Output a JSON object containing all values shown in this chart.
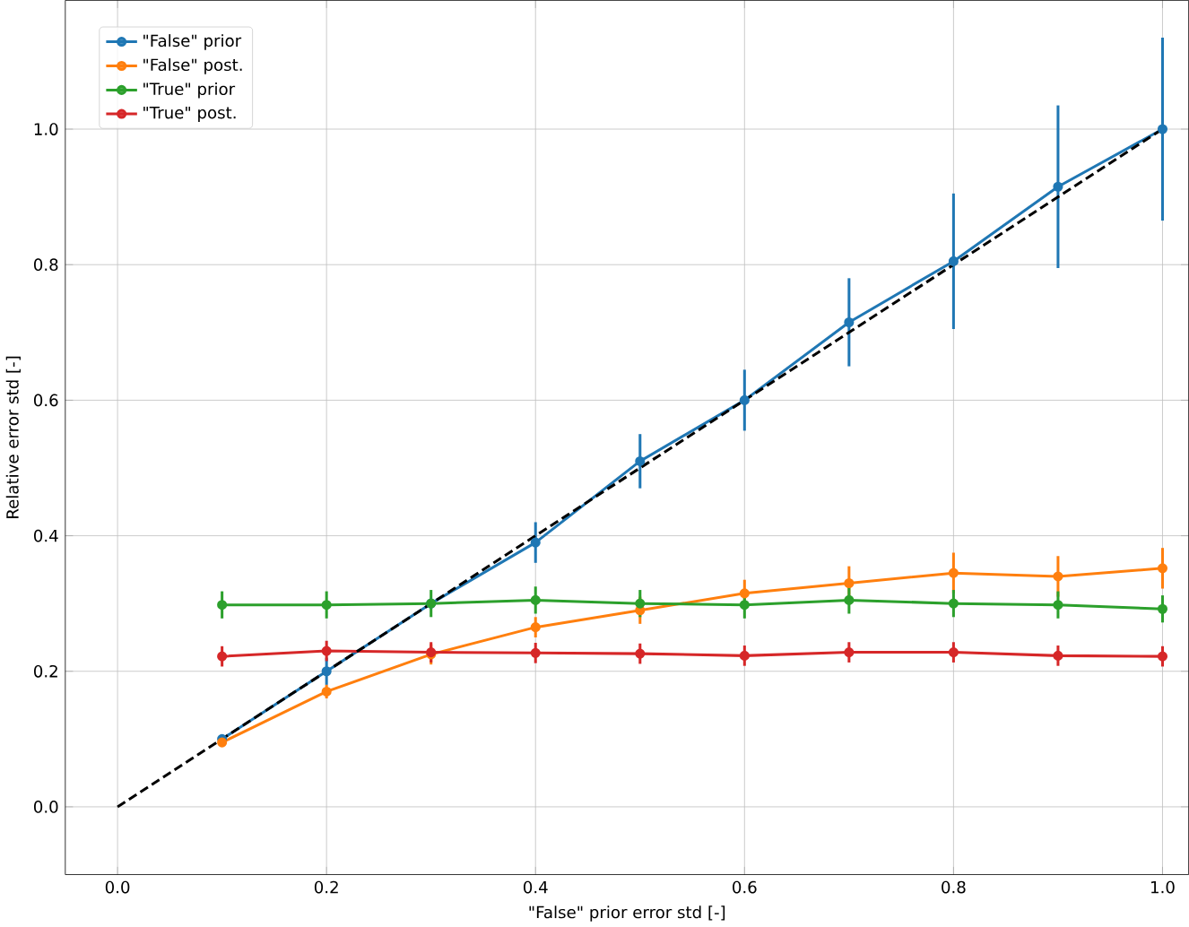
{
  "chart_data": {
    "type": "line",
    "xlabel": "\"False\" prior error std [-]",
    "ylabel": "Relative error std [-]",
    "x": [
      0.1,
      0.2,
      0.3,
      0.4,
      0.5,
      0.6,
      0.7,
      0.8,
      0.9,
      1.0
    ],
    "xlim": [
      -0.05,
      1.025
    ],
    "ylim": [
      -0.1,
      1.19
    ],
    "xticks": [
      {
        "value": 0.0,
        "label": "0.0"
      },
      0.2,
      0.4,
      0.6,
      0.8,
      {
        "value": 1.0,
        "label": "1.0"
      }
    ],
    "yticks": [
      {
        "value": 0.0,
        "label": "0.0"
      },
      0.2,
      0.4,
      0.6,
      0.8,
      {
        "value": 1.0,
        "label": "1.0"
      }
    ],
    "grid": true,
    "legend": "top left",
    "marker": "circle",
    "line_style": "solid",
    "series": [
      {
        "name": "\"False\" prior",
        "color": "#1f77b4",
        "values": [
          0.1,
          0.2,
          0.3,
          0.39,
          0.51,
          0.6,
          0.715,
          0.805,
          0.915,
          1.0
        ],
        "errors": [
          null,
          0.02,
          null,
          0.03,
          0.04,
          0.045,
          0.065,
          0.1,
          0.12,
          0.135
        ]
      },
      {
        "name": "\"False\" post.",
        "color": "#ff7f0e",
        "values": [
          0.095,
          0.17,
          0.225,
          0.265,
          0.29,
          0.315,
          0.33,
          0.345,
          0.34,
          0.352
        ],
        "errors": [
          null,
          0.01,
          0.015,
          0.015,
          0.02,
          0.02,
          0.025,
          0.03,
          0.03,
          0.03
        ]
      },
      {
        "name": "\"True\" prior",
        "color": "#2ca02c",
        "values": [
          0.298,
          0.298,
          0.3,
          0.305,
          0.3,
          0.298,
          0.305,
          0.3,
          0.298,
          0.292
        ],
        "errors": [
          0.02,
          0.02,
          0.02,
          0.02,
          0.02,
          0.02,
          0.02,
          0.02,
          0.02,
          0.02
        ]
      },
      {
        "name": "\"True\" post.",
        "color": "#d62728",
        "values": [
          0.222,
          0.23,
          0.228,
          0.227,
          0.226,
          0.223,
          0.228,
          0.228,
          0.223,
          0.222
        ],
        "errors": [
          0.015,
          0.015,
          0.015,
          0.015,
          0.015,
          0.015,
          0.015,
          0.015,
          0.015,
          0.015
        ]
      },
      {
        "type": "line",
        "x": [
          0,
          1
        ],
        "values": [
          0,
          1
        ],
        "color": "#000000",
        "line_style": "dashed",
        "marker": "none"
      }
    ]
  }
}
